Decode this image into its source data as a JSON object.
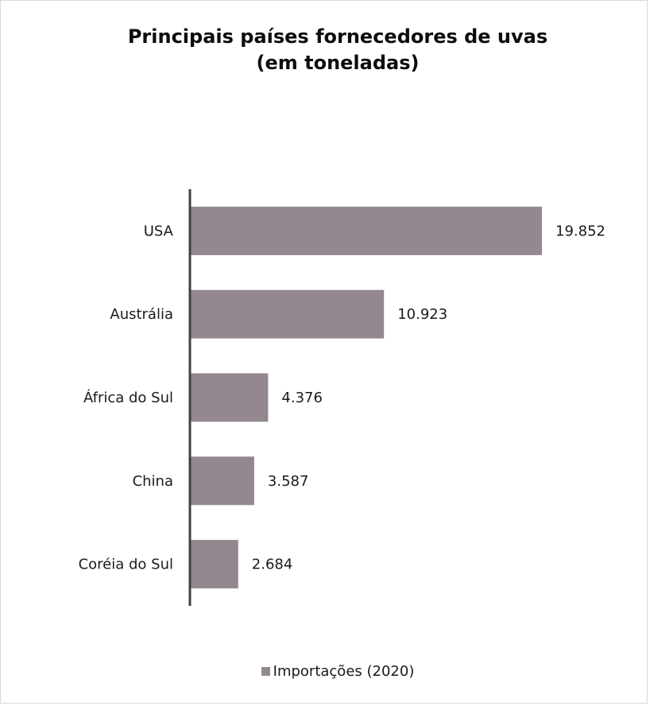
{
  "chart_data": {
    "type": "bar",
    "orientation": "horizontal",
    "title": "Principais países fornecedores de uvas",
    "subtitle": "(em toneladas)",
    "categories": [
      "USA",
      "Austrália",
      "África do Sul",
      "China",
      "Coréia do Sul"
    ],
    "series": [
      {
        "name": "Importações (2020)",
        "values": [
          19852,
          10923,
          4376,
          3587,
          2684
        ],
        "labels": [
          "19.852",
          "10.923",
          "4.376",
          "3.587",
          "2.684"
        ]
      }
    ],
    "xlim": [
      0,
      20000
    ],
    "grid": false,
    "legend": "bottom",
    "bar_color": "#948890",
    "axis_color": "#404040"
  }
}
